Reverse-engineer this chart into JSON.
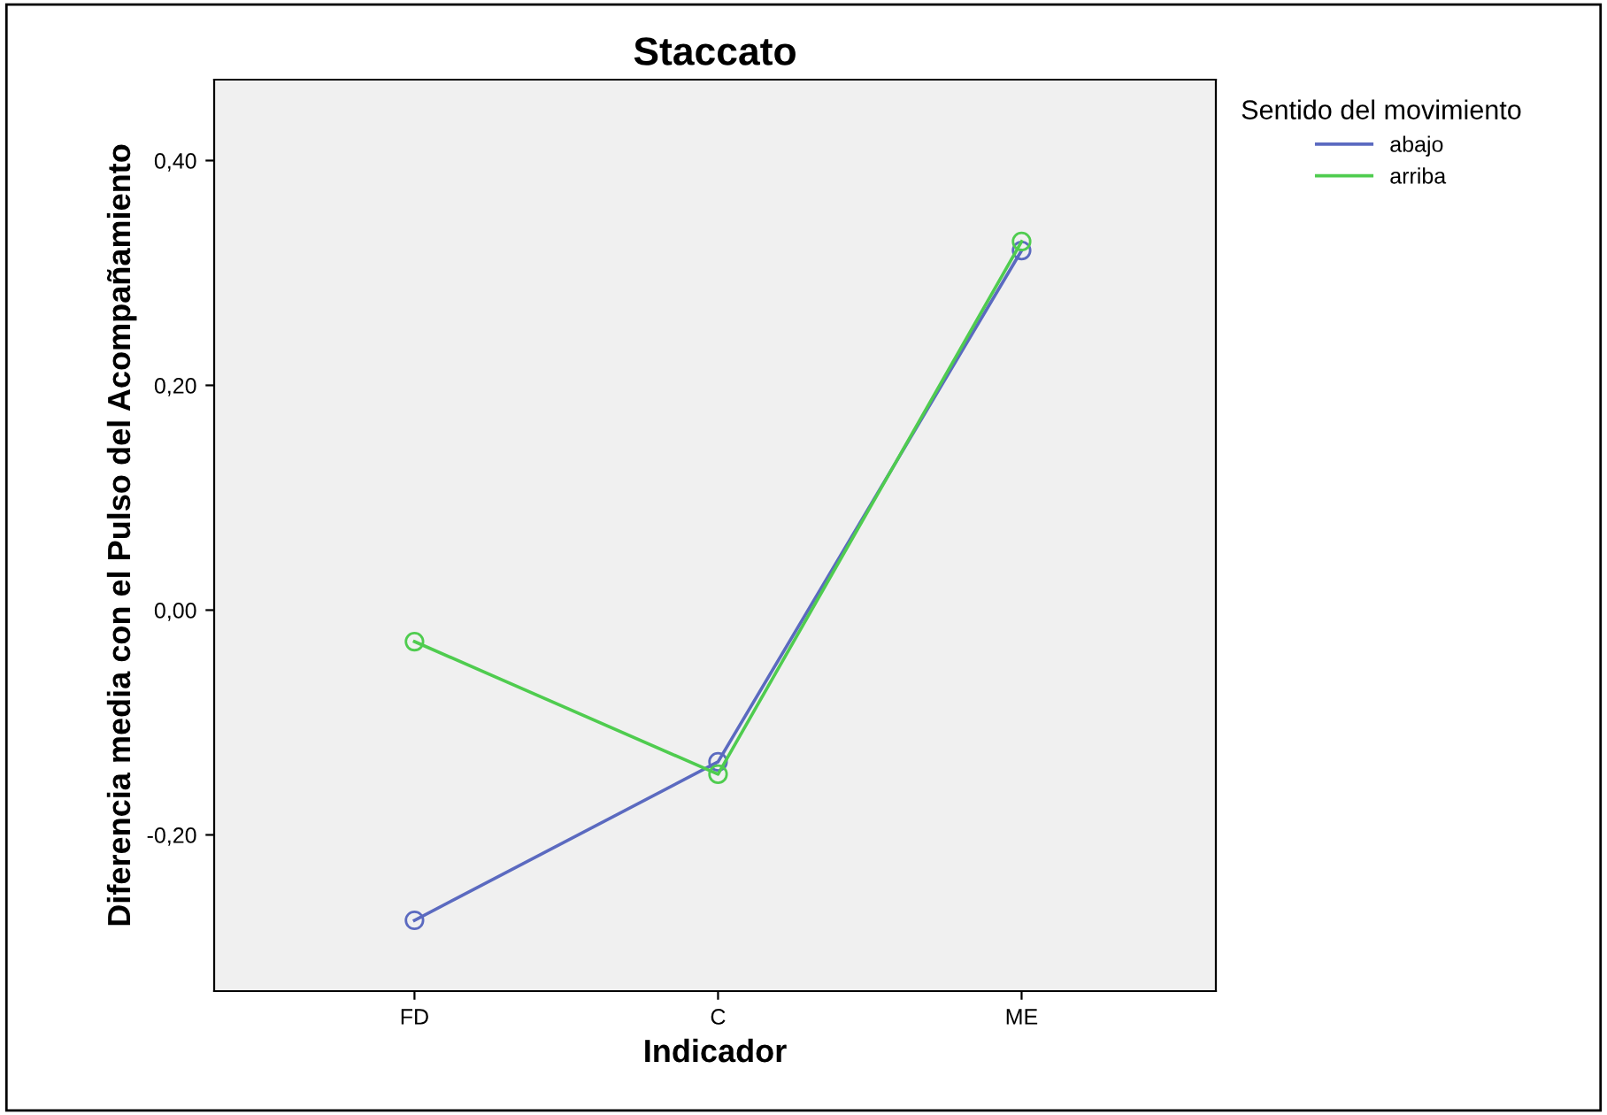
{
  "chart_data": {
    "type": "line",
    "title": "Staccato",
    "xlabel": "Indicador",
    "ylabel": "Diferencia media con el Pulso del Acompañamiento",
    "legend_title": "Sentido del movimiento",
    "categories": [
      "FD",
      "C",
      "ME"
    ],
    "series": [
      {
        "name": "abajo",
        "color": "#5b6ac0",
        "values": [
          -0.276,
          -0.135,
          0.32
        ]
      },
      {
        "name": "arriba",
        "color": "#4fcc4f",
        "values": [
          -0.028,
          -0.146,
          0.328
        ]
      }
    ],
    "ylim": [
      -0.339,
      0.472
    ],
    "yticks": [
      {
        "value": -0.2,
        "label": "-0,20"
      },
      {
        "value": 0,
        "label": "0,00"
      },
      {
        "value": 0.2,
        "label": "0,20"
      },
      {
        "value": 0.4,
        "label": "0,40"
      }
    ],
    "marker": "circle",
    "line_style": "solid",
    "legend": "top right",
    "grid": false
  }
}
